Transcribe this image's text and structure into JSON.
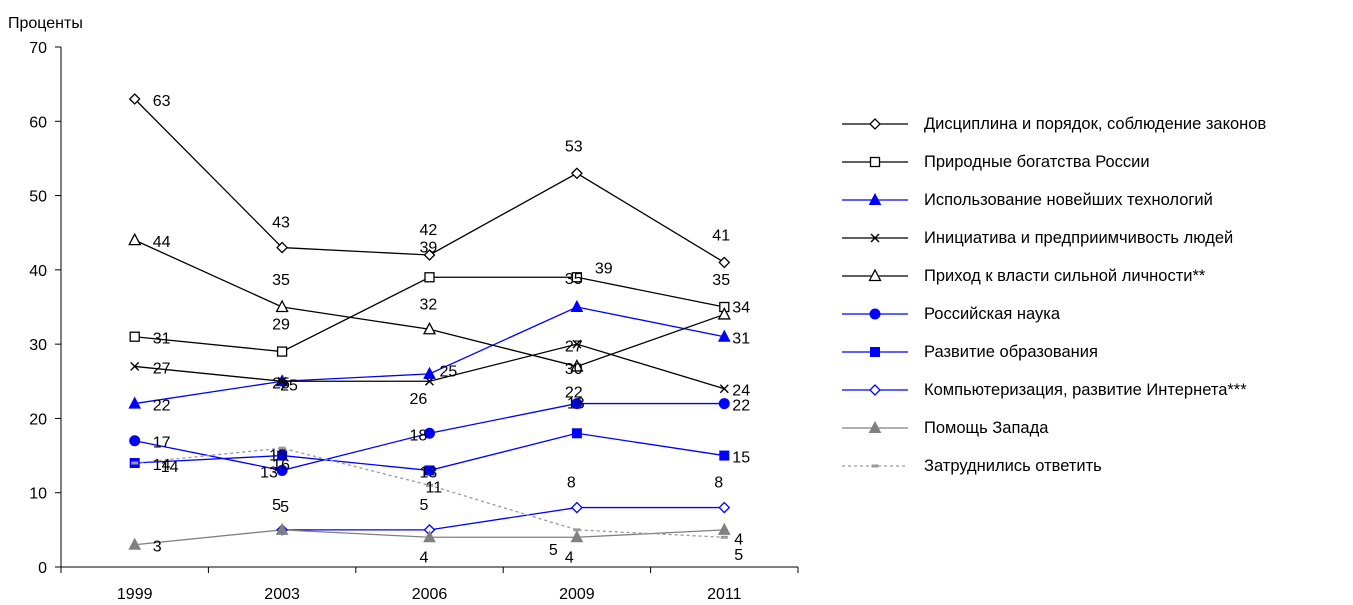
{
  "chart_data": {
    "type": "line",
    "y_unit_label": "Проценты",
    "ylim": [
      0,
      70
    ],
    "y_ticks": [
      0,
      10,
      20,
      30,
      40,
      50,
      60,
      70
    ],
    "categories": [
      "1999",
      "2003",
      "2006",
      "2009",
      "2011"
    ],
    "grid": false,
    "legend_position": "right",
    "series": [
      {
        "name": "Дисциплина и порядок, соблюдение законов",
        "values": [
          63,
          43,
          42,
          53,
          41
        ],
        "color": "#000000",
        "marker": "diamond-open",
        "dashed": false
      },
      {
        "name": "Природные богатства России",
        "values": [
          31,
          29,
          39,
          39,
          35
        ],
        "color": "#000000",
        "marker": "square-open",
        "dashed": false
      },
      {
        "name": "Использование новейших технологий",
        "values": [
          22,
          25,
          26,
          35,
          31
        ],
        "color": "#0000ff",
        "marker": "triangle-filled",
        "dashed": false
      },
      {
        "name": "Инициатива и предприимчивость людей",
        "values": [
          27,
          25,
          25,
          30,
          24
        ],
        "color": "#000000",
        "marker": "x",
        "dashed": false
      },
      {
        "name": "Приход к власти сильной личности**",
        "values": [
          44,
          35,
          32,
          27,
          34
        ],
        "color": "#000000",
        "marker": "triangle-open",
        "dashed": false
      },
      {
        "name": "Российская наука",
        "values": [
          17,
          13,
          18,
          22,
          22
        ],
        "color": "#0000ff",
        "marker": "circle-filled",
        "dashed": false
      },
      {
        "name": "Развитие образования",
        "values": [
          14,
          15,
          13,
          18,
          15
        ],
        "color": "#0000ff",
        "marker": "square-filled",
        "dashed": false
      },
      {
        "name": "Компьютеризация, развитие Интернета***",
        "values": [
          null,
          5,
          5,
          8,
          8
        ],
        "color": "#0000ff",
        "marker": "diamond-open",
        "dashed": false
      },
      {
        "name": "Помощь Запада",
        "values": [
          3,
          5,
          4,
          4,
          5
        ],
        "color": "#808080",
        "marker": "triangle-filled",
        "dashed": false
      },
      {
        "name": "Затруднились ответить",
        "values": [
          14,
          16,
          11,
          5,
          4
        ],
        "color": "#999999",
        "marker": "dash",
        "dashed": true
      }
    ],
    "data_labels": [
      {
        "text": "63",
        "x": "1999",
        "y": 63
      },
      {
        "text": "44",
        "x": "1999",
        "y": 44
      },
      {
        "text": "31",
        "x": "1999",
        "y": 31
      },
      {
        "text": "27",
        "x": "1999",
        "y": 27
      },
      {
        "text": "22",
        "x": "1999",
        "y": 22
      },
      {
        "text": "17",
        "x": "1999",
        "y": 17
      },
      {
        "text": "14",
        "x": "1999",
        "y": 14
      },
      {
        "text": "14",
        "x": "1999",
        "y": 14
      },
      {
        "text": "3",
        "x": "1999",
        "y": 3
      },
      {
        "text": "43",
        "x": "2003",
        "y": 43
      },
      {
        "text": "35",
        "x": "2003",
        "y": 35
      },
      {
        "text": "29",
        "x": "2003",
        "y": 29
      },
      {
        "text": "25",
        "x": "2003",
        "y": 25
      },
      {
        "text": "25",
        "x": "2003",
        "y": 25
      },
      {
        "text": "15",
        "x": "2003",
        "y": 15
      },
      {
        "text": "13",
        "x": "2003",
        "y": 13
      },
      {
        "text": "16",
        "x": "2003",
        "y": 16
      },
      {
        "text": "5",
        "x": "2003",
        "y": 5
      },
      {
        "text": "5",
        "x": "2003",
        "y": 5
      },
      {
        "text": "42",
        "x": "2006",
        "y": 42
      },
      {
        "text": "39",
        "x": "2006",
        "y": 39
      },
      {
        "text": "32",
        "x": "2006",
        "y": 32
      },
      {
        "text": "25",
        "x": "2006",
        "y": 25
      },
      {
        "text": "26",
        "x": "2006",
        "y": 26
      },
      {
        "text": "13",
        "x": "2006",
        "y": 13
      },
      {
        "text": "18",
        "x": "2006",
        "y": 18
      },
      {
        "text": "11",
        "x": "2006",
        "y": 11
      },
      {
        "text": "5",
        "x": "2006",
        "y": 5
      },
      {
        "text": "4",
        "x": "2006",
        "y": 4
      },
      {
        "text": "53",
        "x": "2009",
        "y": 53
      },
      {
        "text": "39",
        "x": "2009",
        "y": 39
      },
      {
        "text": "35",
        "x": "2009",
        "y": 35
      },
      {
        "text": "27",
        "x": "2009",
        "y": 27
      },
      {
        "text": "30",
        "x": "2009",
        "y": 30
      },
      {
        "text": "22",
        "x": "2009",
        "y": 22
      },
      {
        "text": "18",
        "x": "2009",
        "y": 18
      },
      {
        "text": "8",
        "x": "2009",
        "y": 8
      },
      {
        "text": "5",
        "x": "2009",
        "y": 5
      },
      {
        "text": "4",
        "x": "2009",
        "y": 4
      },
      {
        "text": "41",
        "x": "2011",
        "y": 41
      },
      {
        "text": "35",
        "x": "2011",
        "y": 35
      },
      {
        "text": "34",
        "x": "2011",
        "y": 34
      },
      {
        "text": "31",
        "x": "2011",
        "y": 31
      },
      {
        "text": "24",
        "x": "2011",
        "y": 24
      },
      {
        "text": "22",
        "x": "2011",
        "y": 22
      },
      {
        "text": "15",
        "x": "2011",
        "y": 15
      },
      {
        "text": "8",
        "x": "2011",
        "y": 8
      },
      {
        "text": "4",
        "x": "2011",
        "y": 4
      },
      {
        "text": "5",
        "x": "2011",
        "y": 5
      }
    ]
  }
}
